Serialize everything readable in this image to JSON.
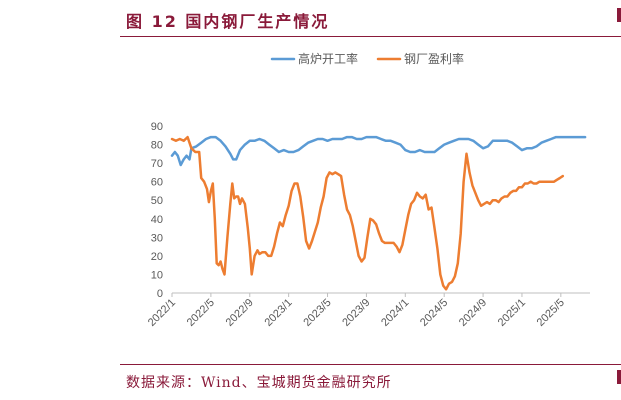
{
  "figure": {
    "title": "图 12 国内钢厂生产情况",
    "source": "数据来源：Wind、宝城期货金融研究所"
  },
  "colors": {
    "accent": "#8a1a3a",
    "series_blue": "#5b9bd5",
    "series_orange": "#ed7d31",
    "axis": "#bfbfbf",
    "text": "#595959"
  },
  "chart_data": {
    "type": "line",
    "title": "",
    "xlabel": "",
    "ylabel": "",
    "ylim": [
      0,
      90
    ],
    "yticks": [
      0,
      10,
      20,
      30,
      40,
      50,
      60,
      70,
      80,
      90
    ],
    "xlim": [
      0,
      43
    ],
    "xticks": [
      {
        "pos": 0,
        "label": "2022/1"
      },
      {
        "pos": 4,
        "label": "2022/5"
      },
      {
        "pos": 8,
        "label": "2022/9"
      },
      {
        "pos": 12,
        "label": "2023/1"
      },
      {
        "pos": 16,
        "label": "2023/5"
      },
      {
        "pos": 20,
        "label": "2023/9"
      },
      {
        "pos": 24,
        "label": "2024/1"
      },
      {
        "pos": 28,
        "label": "2024/5"
      },
      {
        "pos": 32,
        "label": "2024/9"
      },
      {
        "pos": 36,
        "label": "2025/1"
      },
      {
        "pos": 40,
        "label": "2025/5"
      }
    ],
    "grid": false,
    "legend": "top",
    "series": [
      {
        "name": "高炉开工率",
        "color": "#5b9bd5",
        "points": [
          [
            0,
            74
          ],
          [
            0.3,
            76
          ],
          [
            0.6,
            74
          ],
          [
            0.9,
            69
          ],
          [
            1.2,
            72
          ],
          [
            1.5,
            74
          ],
          [
            1.8,
            72
          ],
          [
            2,
            78
          ],
          [
            2.5,
            79
          ],
          [
            3,
            81
          ],
          [
            3.5,
            83
          ],
          [
            4,
            84
          ],
          [
            4.5,
            84
          ],
          [
            5,
            82
          ],
          [
            5.5,
            79
          ],
          [
            6,
            75
          ],
          [
            6.3,
            72
          ],
          [
            6.6,
            72
          ],
          [
            7,
            77
          ],
          [
            7.5,
            80
          ],
          [
            8,
            82
          ],
          [
            8.5,
            82
          ],
          [
            9,
            83
          ],
          [
            9.5,
            82
          ],
          [
            10,
            80
          ],
          [
            10.5,
            78
          ],
          [
            11,
            76
          ],
          [
            11.5,
            77
          ],
          [
            12,
            76
          ],
          [
            12.5,
            76
          ],
          [
            13,
            77
          ],
          [
            13.5,
            79
          ],
          [
            14,
            81
          ],
          [
            14.5,
            82
          ],
          [
            15,
            83
          ],
          [
            15.5,
            83
          ],
          [
            16,
            82
          ],
          [
            16.5,
            83
          ],
          [
            17,
            83
          ],
          [
            17.5,
            83
          ],
          [
            18,
            84
          ],
          [
            18.5,
            84
          ],
          [
            19,
            83
          ],
          [
            19.5,
            83
          ],
          [
            20,
            84
          ],
          [
            20.5,
            84
          ],
          [
            21,
            84
          ],
          [
            21.5,
            83
          ],
          [
            22,
            82
          ],
          [
            22.5,
            82
          ],
          [
            23,
            81
          ],
          [
            23.5,
            80
          ],
          [
            24,
            77
          ],
          [
            24.5,
            76
          ],
          [
            25,
            76
          ],
          [
            25.5,
            77
          ],
          [
            26,
            76
          ],
          [
            26.5,
            76
          ],
          [
            27,
            76
          ],
          [
            27.5,
            78
          ],
          [
            28,
            80
          ],
          [
            28.5,
            81
          ],
          [
            29,
            82
          ],
          [
            29.5,
            83
          ],
          [
            30,
            83
          ],
          [
            30.5,
            83
          ],
          [
            31,
            82
          ],
          [
            31.5,
            80
          ],
          [
            32,
            78
          ],
          [
            32.5,
            79
          ],
          [
            33,
            82
          ],
          [
            33.5,
            82
          ],
          [
            34,
            82
          ],
          [
            34.5,
            82
          ],
          [
            35,
            81
          ],
          [
            35.5,
            79
          ],
          [
            36,
            77
          ],
          [
            36.5,
            78
          ],
          [
            37,
            78
          ],
          [
            37.5,
            79
          ],
          [
            38,
            81
          ],
          [
            38.5,
            82
          ],
          [
            39,
            83
          ],
          [
            39.5,
            84
          ],
          [
            40,
            84
          ],
          [
            40.5,
            84
          ],
          [
            41,
            84
          ],
          [
            41.5,
            84
          ],
          [
            42,
            84
          ],
          [
            42.5,
            84
          ]
        ]
      },
      {
        "name": "钢厂盈利率",
        "color": "#ed7d31",
        "points": [
          [
            0,
            83
          ],
          [
            0.4,
            82
          ],
          [
            0.8,
            83
          ],
          [
            1.2,
            82
          ],
          [
            1.6,
            84
          ],
          [
            2,
            78
          ],
          [
            2.4,
            76
          ],
          [
            2.8,
            76
          ],
          [
            3,
            62
          ],
          [
            3.3,
            60
          ],
          [
            3.6,
            56
          ],
          [
            3.8,
            49
          ],
          [
            4,
            55
          ],
          [
            4.2,
            59
          ],
          [
            4.4,
            40
          ],
          [
            4.6,
            16
          ],
          [
            4.8,
            15
          ],
          [
            5,
            17
          ],
          [
            5.2,
            13
          ],
          [
            5.4,
            10
          ],
          [
            5.7,
            30
          ],
          [
            6,
            48
          ],
          [
            6.2,
            59
          ],
          [
            6.4,
            51
          ],
          [
            6.6,
            52
          ],
          [
            6.8,
            52
          ],
          [
            7,
            48
          ],
          [
            7.2,
            51
          ],
          [
            7.5,
            48
          ],
          [
            7.8,
            35
          ],
          [
            8,
            24
          ],
          [
            8.2,
            10
          ],
          [
            8.5,
            20
          ],
          [
            8.8,
            23
          ],
          [
            9,
            21
          ],
          [
            9.3,
            22
          ],
          [
            9.6,
            22
          ],
          [
            9.9,
            20
          ],
          [
            10.2,
            20
          ],
          [
            10.5,
            25
          ],
          [
            10.8,
            32
          ],
          [
            11.1,
            38
          ],
          [
            11.4,
            36
          ],
          [
            11.7,
            42
          ],
          [
            12,
            47
          ],
          [
            12.3,
            55
          ],
          [
            12.6,
            59
          ],
          [
            12.9,
            59
          ],
          [
            13.2,
            52
          ],
          [
            13.5,
            41
          ],
          [
            13.8,
            28
          ],
          [
            14.1,
            24
          ],
          [
            14.4,
            28
          ],
          [
            14.7,
            33
          ],
          [
            15,
            38
          ],
          [
            15.3,
            46
          ],
          [
            15.6,
            52
          ],
          [
            15.9,
            62
          ],
          [
            16.2,
            65
          ],
          [
            16.5,
            64
          ],
          [
            16.8,
            65
          ],
          [
            17.1,
            64
          ],
          [
            17.4,
            63
          ],
          [
            17.7,
            53
          ],
          [
            18,
            45
          ],
          [
            18.3,
            42
          ],
          [
            18.6,
            36
          ],
          [
            18.9,
            28
          ],
          [
            19.2,
            20
          ],
          [
            19.5,
            17
          ],
          [
            19.8,
            19
          ],
          [
            20.1,
            30
          ],
          [
            20.4,
            40
          ],
          [
            20.7,
            39
          ],
          [
            21,
            37
          ],
          [
            21.3,
            32
          ],
          [
            21.6,
            28
          ],
          [
            21.9,
            27
          ],
          [
            22.2,
            27
          ],
          [
            22.5,
            27
          ],
          [
            22.8,
            27
          ],
          [
            23.1,
            25
          ],
          [
            23.4,
            22
          ],
          [
            23.7,
            26
          ],
          [
            24,
            34
          ],
          [
            24.3,
            42
          ],
          [
            24.6,
            48
          ],
          [
            24.9,
            50
          ],
          [
            25.2,
            54
          ],
          [
            25.5,
            52
          ],
          [
            25.8,
            51
          ],
          [
            26.1,
            53
          ],
          [
            26.4,
            45
          ],
          [
            26.7,
            46
          ],
          [
            27,
            35
          ],
          [
            27.3,
            24
          ],
          [
            27.6,
            10
          ],
          [
            27.9,
            4
          ],
          [
            28.2,
            2
          ],
          [
            28.5,
            5
          ],
          [
            28.8,
            6
          ],
          [
            29.1,
            9
          ],
          [
            29.4,
            16
          ],
          [
            29.7,
            32
          ],
          [
            30,
            60
          ],
          [
            30.3,
            75
          ],
          [
            30.6,
            65
          ],
          [
            30.9,
            58
          ],
          [
            31.2,
            54
          ],
          [
            31.5,
            50
          ],
          [
            31.8,
            47
          ],
          [
            32.1,
            48
          ],
          [
            32.4,
            49
          ],
          [
            32.7,
            48
          ],
          [
            33,
            50
          ],
          [
            33.3,
            50
          ],
          [
            33.6,
            49
          ],
          [
            33.9,
            51
          ],
          [
            34.2,
            52
          ],
          [
            34.5,
            52
          ],
          [
            34.8,
            54
          ],
          [
            35.1,
            55
          ],
          [
            35.4,
            55
          ],
          [
            35.7,
            57
          ],
          [
            36,
            57
          ],
          [
            36.3,
            59
          ],
          [
            36.6,
            59
          ],
          [
            36.9,
            60
          ],
          [
            37.2,
            59
          ],
          [
            37.5,
            59
          ],
          [
            37.8,
            60
          ],
          [
            38.1,
            60
          ],
          [
            38.4,
            60
          ],
          [
            38.7,
            60
          ],
          [
            39,
            60
          ],
          [
            39.3,
            60
          ],
          [
            39.6,
            61
          ],
          [
            39.9,
            62
          ],
          [
            40.2,
            63
          ]
        ]
      }
    ]
  }
}
